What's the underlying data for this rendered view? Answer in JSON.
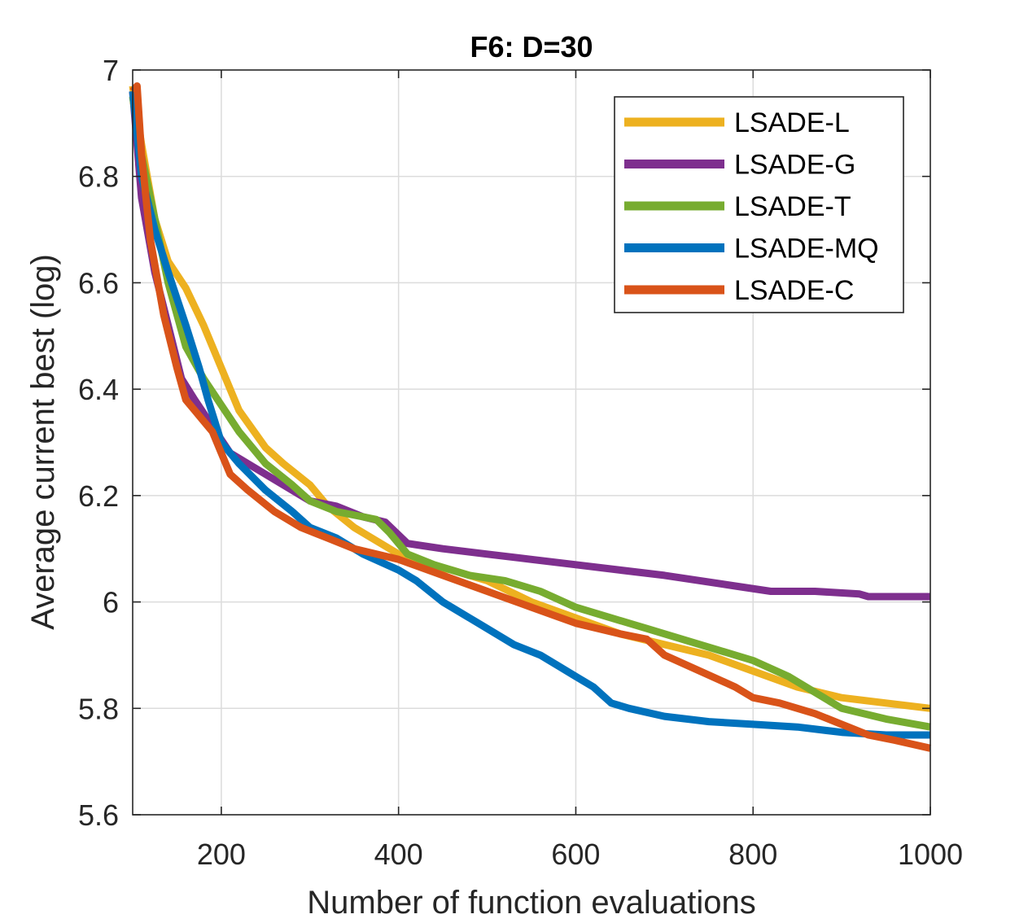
{
  "chart_data": {
    "type": "line",
    "title": "F6: D=30",
    "xlabel": "Number of function evaluations",
    "ylabel": "Average current best (log)",
    "xlim": [
      100,
      1000
    ],
    "ylim": [
      5.6,
      7
    ],
    "xticks": [
      200,
      400,
      600,
      800,
      1000
    ],
    "xtick_labels": [
      "200",
      "400",
      "600",
      "800",
      "1000"
    ],
    "yticks": [
      5.6,
      5.8,
      6,
      6.2,
      6.4,
      6.6,
      6.8,
      7
    ],
    "ytick_labels": [
      "5.6",
      "5.8",
      "6",
      "6.2",
      "6.4",
      "6.6",
      "6.8",
      "7"
    ],
    "grid": true,
    "legend_position": "top-right",
    "series": [
      {
        "name": "LSADE-L",
        "color": "#EDB120",
        "x": [
          100,
          110,
          125,
          140,
          160,
          180,
          200,
          220,
          250,
          270,
          300,
          320,
          350,
          380,
          400,
          430,
          460,
          500,
          550,
          600,
          650,
          700,
          750,
          800,
          850,
          900,
          950,
          1000
        ],
        "y": [
          6.97,
          6.86,
          6.72,
          6.64,
          6.59,
          6.52,
          6.44,
          6.36,
          6.29,
          6.26,
          6.22,
          6.18,
          6.14,
          6.11,
          6.09,
          6.07,
          6.06,
          6.04,
          6.0,
          5.97,
          5.94,
          5.92,
          5.9,
          5.87,
          5.84,
          5.82,
          5.81,
          5.8
        ]
      },
      {
        "name": "LSADE-G",
        "color": "#7E2F8E",
        "x": [
          100,
          110,
          125,
          140,
          155,
          170,
          190,
          210,
          240,
          270,
          300,
          330,
          360,
          385,
          410,
          450,
          500,
          550,
          600,
          650,
          700,
          740,
          780,
          820,
          870,
          920,
          930,
          1000
        ],
        "y": [
          6.96,
          6.76,
          6.62,
          6.52,
          6.42,
          6.38,
          6.33,
          6.28,
          6.25,
          6.22,
          6.19,
          6.18,
          6.16,
          6.15,
          6.11,
          6.1,
          6.09,
          6.08,
          6.07,
          6.06,
          6.05,
          6.04,
          6.03,
          6.02,
          6.02,
          6.015,
          6.01,
          6.01
        ]
      },
      {
        "name": "LSADE-T",
        "color": "#77AC30",
        "x": [
          100,
          110,
          125,
          140,
          160,
          180,
          200,
          220,
          250,
          280,
          300,
          330,
          360,
          375,
          390,
          410,
          440,
          480,
          520,
          560,
          600,
          640,
          680,
          720,
          760,
          800,
          840,
          870,
          900,
          950,
          1000
        ],
        "y": [
          6.95,
          6.84,
          6.72,
          6.6,
          6.48,
          6.42,
          6.37,
          6.32,
          6.26,
          6.22,
          6.19,
          6.17,
          6.16,
          6.155,
          6.13,
          6.09,
          6.07,
          6.05,
          6.04,
          6.02,
          5.99,
          5.97,
          5.95,
          5.93,
          5.91,
          5.89,
          5.86,
          5.83,
          5.8,
          5.78,
          5.765
        ]
      },
      {
        "name": "LSADE-MQ",
        "color": "#0072BD",
        "x": [
          100,
          110,
          125,
          140,
          160,
          175,
          185,
          200,
          220,
          250,
          280,
          300,
          330,
          360,
          400,
          420,
          450,
          480,
          500,
          530,
          560,
          580,
          600,
          620,
          640,
          660,
          700,
          750,
          800,
          850,
          900,
          950,
          1000
        ],
        "y": [
          6.96,
          6.8,
          6.7,
          6.62,
          6.52,
          6.44,
          6.38,
          6.3,
          6.26,
          6.21,
          6.17,
          6.14,
          6.12,
          6.09,
          6.06,
          6.04,
          6.0,
          5.97,
          5.95,
          5.92,
          5.9,
          5.88,
          5.86,
          5.84,
          5.81,
          5.8,
          5.785,
          5.775,
          5.77,
          5.765,
          5.755,
          5.75,
          5.75
        ]
      },
      {
        "name": "LSADE-C",
        "color": "#D95319",
        "x": [
          100,
          105,
          110,
          120,
          135,
          150,
          160,
          175,
          190,
          200,
          210,
          230,
          260,
          290,
          320,
          350,
          400,
          450,
          500,
          550,
          600,
          650,
          680,
          700,
          740,
          780,
          800,
          830,
          870,
          900,
          930,
          960,
          1000
        ],
        "y": [
          6.96,
          6.97,
          6.84,
          6.68,
          6.54,
          6.44,
          6.38,
          6.35,
          6.32,
          6.28,
          6.24,
          6.21,
          6.17,
          6.14,
          6.12,
          6.1,
          6.08,
          6.05,
          6.02,
          5.99,
          5.96,
          5.94,
          5.93,
          5.9,
          5.87,
          5.84,
          5.82,
          5.81,
          5.79,
          5.77,
          5.75,
          5.74,
          5.725
        ]
      }
    ]
  }
}
